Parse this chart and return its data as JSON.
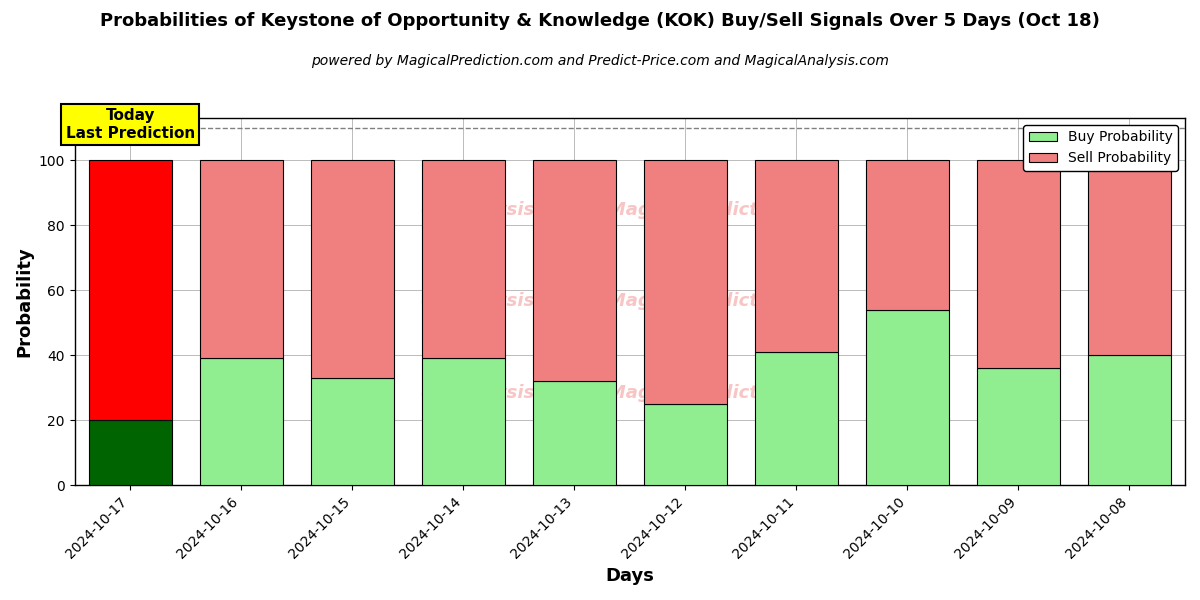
{
  "title": "Probabilities of Keystone of Opportunity & Knowledge (KOK) Buy/Sell Signals Over 5 Days (Oct 18)",
  "subtitle": "powered by MagicalPrediction.com and Predict-Price.com and MagicalAnalysis.com",
  "xlabel": "Days",
  "ylabel": "Probability",
  "days": [
    "2024-10-17",
    "2024-10-16",
    "2024-10-15",
    "2024-10-14",
    "2024-10-13",
    "2024-10-12",
    "2024-10-11",
    "2024-10-10",
    "2024-10-09",
    "2024-10-08"
  ],
  "buy_probs": [
    20,
    39,
    33,
    39,
    32,
    25,
    41,
    54,
    36,
    40
  ],
  "sell_probs": [
    80,
    61,
    67,
    61,
    68,
    75,
    59,
    46,
    64,
    60
  ],
  "today_buy_color": "#006400",
  "today_sell_color": "#ff0000",
  "buy_color": "#90ee90",
  "sell_color": "#f08080",
  "today_label_bg": "#ffff00",
  "today_label_text": "Today\nLast Prediction",
  "legend_buy": "Buy Probability",
  "legend_sell": "Sell Probability",
  "ylim": [
    0,
    113
  ],
  "yticks": [
    0,
    20,
    40,
    60,
    80,
    100
  ],
  "background_color": "#ffffff",
  "grid_color": "#bbbbbb",
  "bar_edge_color": "#000000",
  "bar_width": 0.75,
  "title_fontsize": 13,
  "subtitle_fontsize": 10,
  "axis_label_fontsize": 13,
  "tick_fontsize": 10,
  "legend_fontsize": 10
}
